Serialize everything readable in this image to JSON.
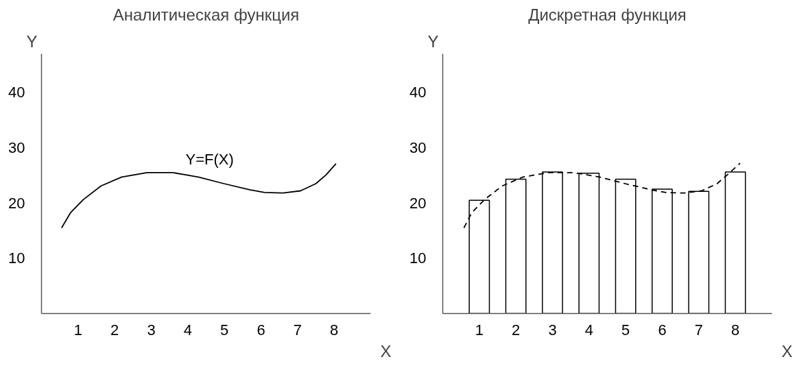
{
  "chart_data": [
    {
      "type": "line",
      "title": "Аналитическая функция",
      "xlabel": "X",
      "ylabel": "Y",
      "xlim": [
        0,
        9
      ],
      "ylim": [
        0,
        47
      ],
      "xticks": [
        1,
        2,
        3,
        4,
        5,
        6,
        7,
        8
      ],
      "yticks": [
        10,
        20,
        30,
        40
      ],
      "grid": false,
      "series": [
        {
          "color": "#000000",
          "line_style": "solid",
          "x": [
            0.55,
            0.79,
            1.14,
            1.63,
            2.19,
            2.89,
            3.59,
            4.29,
            4.99,
            5.69,
            6.1,
            6.6,
            7.08,
            7.5,
            7.78,
            8.05
          ],
          "values": [
            15.5,
            18.2,
            20.6,
            23.1,
            24.7,
            25.5,
            25.5,
            24.7,
            23.5,
            22.4,
            21.9,
            21.8,
            22.2,
            23.5,
            25.1,
            27.1
          ]
        }
      ],
      "annotations": [
        "Y=F(X)"
      ]
    },
    {
      "type": "bar",
      "title": "Дискретная функция",
      "xlabel": "X",
      "ylabel": "Y",
      "xlim": [
        0,
        9
      ],
      "ylim": [
        0,
        47
      ],
      "xticks": [
        1,
        2,
        3,
        4,
        5,
        6,
        7,
        8
      ],
      "yticks": [
        10,
        20,
        30,
        40
      ],
      "grid": false,
      "series": [
        {
          "color": "#ffffff",
          "x": [
            1,
            2,
            3,
            4,
            5,
            6,
            7,
            8
          ],
          "values": [
            20.5,
            24.3,
            25.6,
            25.4,
            24.3,
            22.5,
            22.1,
            25.6
          ]
        },
        {
          "type": "line",
          "color": "#000000",
          "line_style": "dashed",
          "x": [
            0.58,
            0.79,
            1.14,
            1.63,
            2.19,
            2.89,
            3.59,
            4.29,
            4.99,
            5.69,
            6.1,
            6.6,
            7.08,
            7.5,
            7.78,
            8.13
          ],
          "values": [
            15.5,
            18.2,
            20.6,
            23.1,
            24.7,
            25.5,
            25.5,
            24.7,
            23.5,
            22.4,
            21.9,
            21.8,
            22.2,
            23.5,
            25.1,
            27.2
          ]
        }
      ]
    }
  ]
}
